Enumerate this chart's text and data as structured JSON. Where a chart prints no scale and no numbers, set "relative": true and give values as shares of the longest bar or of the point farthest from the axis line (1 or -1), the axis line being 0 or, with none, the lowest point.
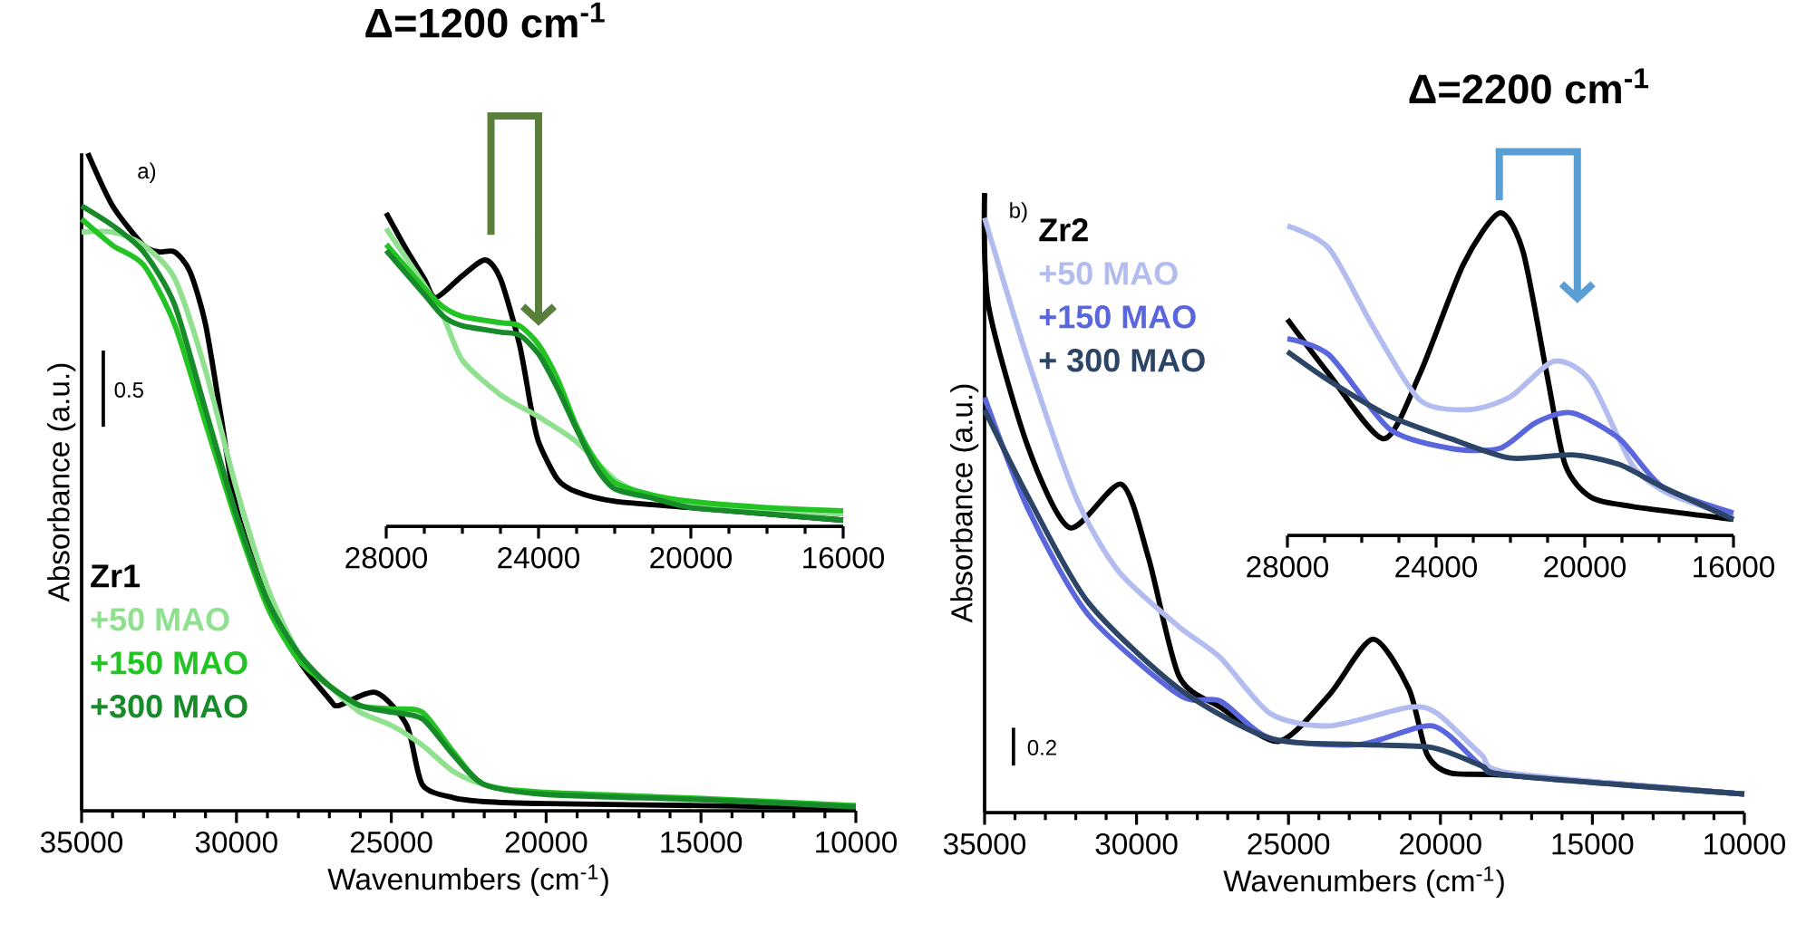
{
  "chart_data": [
    {
      "type": "line",
      "relative": true,
      "xlabel": "Wavenumbers (cm$^{-1}$)",
      "ylabel": "Absorbance (a.u.)",
      "xlim": [
        35000,
        10000
      ],
      "xticks": [
        35000,
        30000,
        25000,
        20000,
        15000,
        10000
      ],
      "tick_labels": "x",
      "legend": "bottom left",
      "annotations": [
        "a)",
        "0.5"
      ],
      "series": [
        {
          "name": "Zr1",
          "color": "#000000",
          "x": [
            34800,
            34000,
            33000,
            32500,
            32000,
            31500,
            31000,
            30500,
            30000,
            29000,
            28000,
            27000,
            26700,
            25500,
            24500,
            24000,
            23000,
            22000,
            20000,
            15000,
            10000
          ],
          "values": [
            1.0,
            0.92,
            0.86,
            0.85,
            0.85,
            0.82,
            0.74,
            0.6,
            0.46,
            0.32,
            0.23,
            0.17,
            0.16,
            0.18,
            0.13,
            0.04,
            0.02,
            0.014,
            0.011,
            0.008,
            0.005
          ]
        },
        {
          "name": "+50 MAO",
          "color": "#8fe08f",
          "x": [
            35000,
            34000,
            33000,
            32000,
            31000,
            30000,
            29000,
            28000,
            27000,
            26000,
            25000,
            24000,
            23000,
            22000,
            20000,
            15000,
            10000
          ],
          "values": [
            0.88,
            0.88,
            0.86,
            0.81,
            0.67,
            0.49,
            0.34,
            0.24,
            0.19,
            0.15,
            0.13,
            0.1,
            0.06,
            0.04,
            0.025,
            0.017,
            0.008
          ]
        },
        {
          "name": "+150 MAO",
          "color": "#22c322",
          "x": [
            35000,
            34000,
            33000,
            32000,
            31000,
            30000,
            29000,
            28000,
            27000,
            26000,
            25000,
            24000,
            23000,
            22000,
            20000,
            15000,
            10000
          ],
          "values": [
            0.9,
            0.86,
            0.83,
            0.74,
            0.59,
            0.44,
            0.31,
            0.23,
            0.19,
            0.16,
            0.155,
            0.15,
            0.09,
            0.04,
            0.028,
            0.019,
            0.008
          ]
        },
        {
          "name": "+300 MAO",
          "color": "#178a2a",
          "x": [
            35000,
            34000,
            33000,
            32000,
            31000,
            30000,
            29000,
            28000,
            27000,
            26000,
            25000,
            24000,
            23000,
            22000,
            20000,
            15000,
            10000
          ],
          "values": [
            0.92,
            0.89,
            0.85,
            0.77,
            0.61,
            0.45,
            0.32,
            0.24,
            0.19,
            0.16,
            0.15,
            0.14,
            0.085,
            0.04,
            0.025,
            0.017,
            0.006
          ]
        }
      ]
    },
    {
      "type": "line",
      "relative": true,
      "xlim": [
        28000,
        16000
      ],
      "xticks": [
        28000,
        24000,
        20000,
        16000
      ],
      "tick_labels": "x",
      "annotations": [
        "Δ=1200 cm$^{-1}$"
      ],
      "series": [
        {
          "color": "#000000",
          "x": [
            28000,
            27500,
            27000,
            26700,
            26000,
            25400,
            25000,
            24500,
            24200,
            24000,
            23500,
            23000,
            22000,
            20000,
            18000,
            16000
          ],
          "values": [
            1.0,
            0.89,
            0.79,
            0.73,
            0.8,
            0.85,
            0.79,
            0.58,
            0.38,
            0.27,
            0.15,
            0.11,
            0.08,
            0.06,
            0.04,
            0.02
          ]
        },
        {
          "color": "#8fe08f",
          "x": [
            28000,
            27000,
            26500,
            26000,
            25000,
            24000,
            23000,
            22000,
            21000,
            20000,
            18000,
            16000
          ],
          "values": [
            0.95,
            0.77,
            0.67,
            0.53,
            0.42,
            0.35,
            0.27,
            0.15,
            0.09,
            0.07,
            0.05,
            0.04
          ]
        },
        {
          "color": "#22c322",
          "x": [
            28000,
            27000,
            26500,
            26000,
            25000,
            24500,
            24000,
            23500,
            23000,
            22500,
            22000,
            21000,
            20000,
            18000,
            16000
          ],
          "values": [
            0.9,
            0.76,
            0.7,
            0.67,
            0.65,
            0.64,
            0.58,
            0.47,
            0.32,
            0.21,
            0.14,
            0.1,
            0.08,
            0.06,
            0.05
          ]
        },
        {
          "color": "#178a2a",
          "x": [
            28000,
            27000,
            26500,
            26000,
            25000,
            24500,
            24000,
            23500,
            23000,
            22500,
            22000,
            21000,
            20000,
            18000,
            16000
          ],
          "values": [
            0.88,
            0.74,
            0.67,
            0.64,
            0.62,
            0.61,
            0.55,
            0.44,
            0.31,
            0.19,
            0.12,
            0.09,
            0.06,
            0.04,
            0.02
          ]
        }
      ]
    },
    {
      "type": "line",
      "relative": true,
      "xlabel": "Wavenumbers (cm$^{-1}$)",
      "ylabel": "Absorbance (a.u.)",
      "xlim": [
        35000,
        10000
      ],
      "xticks": [
        35000,
        30000,
        25000,
        20000,
        15000,
        10000
      ],
      "tick_labels": "x",
      "legend": "top left",
      "annotations": [
        "b)",
        "0.2"
      ],
      "series": [
        {
          "name": "Zr2",
          "color": "#000000",
          "x": [
            35000,
            34880,
            33570,
            32200,
            30500,
            29600,
            28600,
            27240,
            25330,
            23660,
            22230,
            21040,
            20440,
            19670,
            17700,
            10000
          ],
          "values": [
            1.0,
            0.82,
            0.59,
            0.46,
            0.53,
            0.41,
            0.22,
            0.17,
            0.115,
            0.19,
            0.28,
            0.2,
            0.094,
            0.064,
            0.06,
            0.03
          ]
        },
        {
          "name": "+50 MAO",
          "color": "#b3bcee",
          "x": [
            35000,
            33570,
            32000,
            30600,
            28600,
            27240,
            25600,
            23660,
            21040,
            20100,
            18660,
            17700,
            10000
          ],
          "values": [
            0.96,
            0.73,
            0.51,
            0.39,
            0.3,
            0.25,
            0.16,
            0.14,
            0.17,
            0.16,
            0.094,
            0.064,
            0.03
          ]
        },
        {
          "name": "+150 MAO",
          "color": "#5a66dc",
          "x": [
            35000,
            33570,
            31600,
            28600,
            27240,
            25600,
            22650,
            20260,
            18660,
            17700,
            10000
          ],
          "values": [
            0.67,
            0.49,
            0.32,
            0.19,
            0.18,
            0.12,
            0.11,
            0.14,
            0.076,
            0.06,
            0.03
          ]
        },
        {
          "name": "+ 300 MAO",
          "color": "#2c4566",
          "x": [
            35000,
            33570,
            31600,
            28600,
            25600,
            22650,
            20260,
            18660,
            17700,
            10000
          ],
          "values": [
            0.65,
            0.51,
            0.34,
            0.2,
            0.12,
            0.11,
            0.105,
            0.076,
            0.06,
            0.03
          ]
        }
      ]
    },
    {
      "type": "line",
      "relative": true,
      "xlim": [
        28000,
        16000
      ],
      "xticks": [
        28000,
        24000,
        20000,
        16000
      ],
      "tick_labels": "x",
      "annotations": [
        "Δ=2200 cm$^{-1}$"
      ],
      "series": [
        {
          "color": "#000000",
          "x": [
            28000,
            26880,
            25410,
            24440,
            23270,
            22290,
            21660,
            21020,
            20530,
            19850,
            18730,
            16000
          ],
          "values": [
            0.67,
            0.5,
            0.3,
            0.5,
            0.84,
            1.0,
            0.88,
            0.5,
            0.22,
            0.12,
            0.09,
            0.05
          ]
        },
        {
          "color": "#b3bcee",
          "x": [
            28000,
            26880,
            25710,
            24440,
            23120,
            22000,
            20830,
            19850,
            18730,
            17750,
            16000
          ],
          "values": [
            0.96,
            0.89,
            0.65,
            0.42,
            0.39,
            0.43,
            0.54,
            0.48,
            0.22,
            0.13,
            0.06
          ]
        },
        {
          "color": "#5a66dc",
          "x": [
            28000,
            26880,
            25250,
            23610,
            22290,
            21320,
            20340,
            19070,
            17900,
            16000
          ],
          "values": [
            0.61,
            0.56,
            0.33,
            0.27,
            0.27,
            0.35,
            0.38,
            0.3,
            0.15,
            0.07
          ]
        },
        {
          "color": "#2c4566",
          "x": [
            28000,
            26880,
            25250,
            23610,
            22000,
            20340,
            19070,
            17900,
            16000
          ],
          "values": [
            0.57,
            0.48,
            0.37,
            0.3,
            0.24,
            0.25,
            0.22,
            0.15,
            0.05
          ]
        }
      ]
    }
  ]
}
